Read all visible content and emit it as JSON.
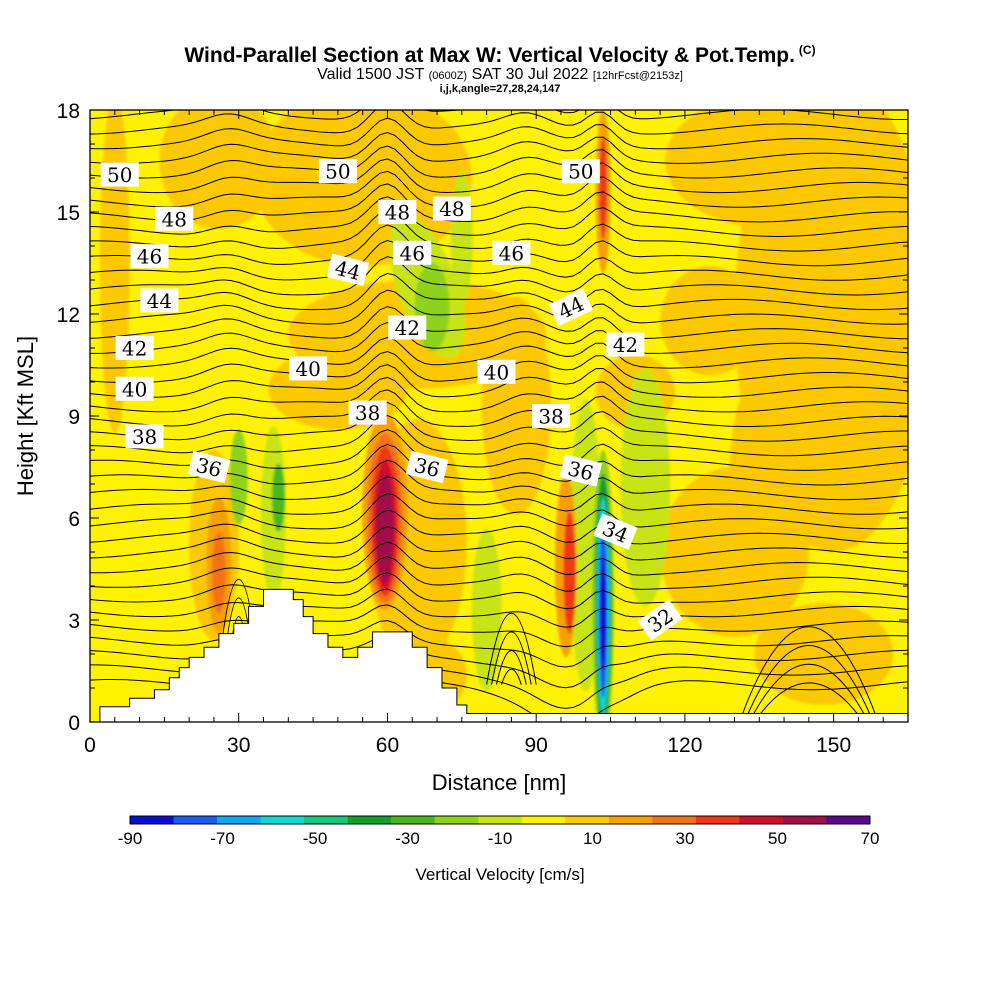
{
  "header": {
    "title": "Wind-Parallel Section at Max W: Vertical Velocity & Pot.Temp.",
    "copyright_mark": "(C)",
    "valid_prefix": "Valid 1500 JST",
    "valid_z": "(0600Z)",
    "valid_date": "SAT 30 Jul 2022",
    "forecast_note": "[12hrFcst@2153z]",
    "ijk_line": "i,j,k,angle=27,28,24,147"
  },
  "chart_data": {
    "type": "heatmap",
    "xlabel": "Distance [nm]",
    "ylabel": "Height [Kft MSL]",
    "xlim": [
      0,
      165
    ],
    "ylim": [
      0,
      18
    ],
    "x_ticks": [
      0,
      30,
      60,
      90,
      120,
      150
    ],
    "y_ticks": [
      0,
      3,
      6,
      9,
      12,
      15,
      18
    ],
    "colorbar": {
      "label": "Vertical Velocity [cm/s]",
      "tick_labels": [
        "-90",
        "-70",
        "-50",
        "-30",
        "-10",
        "10",
        "30",
        "50",
        "70"
      ],
      "bounds": [
        -90,
        -80,
        -70,
        -60,
        -50,
        -40,
        -30,
        -20,
        -10,
        0,
        10,
        20,
        30,
        40,
        50,
        60,
        70
      ],
      "colors": [
        "#0b0bd6",
        "#1a5cf0",
        "#10a8f0",
        "#10d8d0",
        "#18c87a",
        "#10a030",
        "#4cb820",
        "#8ed21a",
        "#c8e414",
        "#fff200",
        "#fcc800",
        "#f8a000",
        "#f47218",
        "#f03818",
        "#d0102a",
        "#a0104a",
        "#5a0a8c"
      ]
    },
    "terrain_profile": {
      "x": [
        0,
        2,
        2,
        8,
        8,
        13,
        13,
        16,
        16,
        18,
        18,
        20,
        20,
        23,
        23,
        26,
        26,
        29,
        29,
        32,
        32,
        35,
        35,
        41,
        41,
        43,
        43,
        45,
        45,
        48,
        48,
        51,
        51,
        54,
        54,
        57,
        57,
        59,
        59,
        65,
        65,
        68,
        68,
        71,
        71,
        74,
        74,
        76,
        76,
        165
      ],
      "z": [
        0,
        0,
        0.45,
        0.45,
        0.7,
        0.7,
        0.95,
        0.95,
        1.3,
        1.3,
        1.6,
        1.6,
        1.9,
        1.9,
        2.2,
        2.2,
        2.6,
        2.6,
        2.9,
        2.9,
        3.4,
        3.4,
        3.9,
        3.9,
        3.6,
        3.6,
        3.1,
        3.1,
        2.6,
        2.6,
        2.2,
        2.2,
        1.9,
        1.9,
        2.2,
        2.2,
        2.65,
        2.65,
        2.65,
        2.65,
        2.2,
        2.2,
        1.6,
        1.6,
        1.0,
        1.0,
        0.5,
        0.5,
        0.25,
        0.25
      ]
    },
    "w_features": [
      {
        "x": 60,
        "z": 5.9,
        "w": 70,
        "note": "main updraft core"
      },
      {
        "x": 26,
        "z": 4.4,
        "w": 30
      },
      {
        "x": 97,
        "z": 4.5,
        "w": 40
      },
      {
        "x": 103.5,
        "z": 3.5,
        "w": -80,
        "note": "downdraft core"
      },
      {
        "x": 103.5,
        "z": 15.5,
        "w": 30
      },
      {
        "x": 72,
        "z": 13.0,
        "w": -15
      },
      {
        "x": 112,
        "z": 7.0,
        "w": -15
      }
    ],
    "theta_contours": [
      {
        "value": 50,
        "labels": [
          [
            6,
            16.1
          ],
          [
            50,
            16.2
          ],
          [
            99,
            16.2
          ]
        ]
      },
      {
        "value": 48,
        "labels": [
          [
            17,
            14.8
          ],
          [
            62,
            15.0
          ],
          [
            73,
            15.1
          ]
        ]
      },
      {
        "value": 46,
        "labels": [
          [
            12,
            13.7
          ],
          [
            65,
            13.8
          ],
          [
            85,
            13.8
          ]
        ]
      },
      {
        "value": 44,
        "labels": [
          [
            14,
            12.4
          ],
          [
            52,
            13.3
          ],
          [
            97,
            12.2
          ]
        ]
      },
      {
        "value": 42,
        "labels": [
          [
            9,
            11.0
          ],
          [
            64,
            11.6
          ],
          [
            108,
            11.1
          ]
        ]
      },
      {
        "value": 40,
        "labels": [
          [
            9,
            9.8
          ],
          [
            44,
            10.4
          ],
          [
            82,
            10.3
          ]
        ]
      },
      {
        "value": 38,
        "labels": [
          [
            11,
            8.4
          ],
          [
            56,
            9.1
          ],
          [
            93,
            9.0
          ]
        ]
      },
      {
        "value": 36,
        "labels": [
          [
            24,
            7.5
          ],
          [
            68,
            7.5
          ],
          [
            99,
            7.4
          ]
        ]
      },
      {
        "value": 34,
        "labels": [
          [
            106,
            5.6
          ]
        ]
      },
      {
        "value": 32,
        "labels": [
          [
            115,
            3.0
          ]
        ]
      }
    ],
    "theta_levels_printed": [
      "50",
      "50",
      "50",
      "48",
      "48",
      "48",
      "46",
      "46",
      "46",
      "44",
      "44",
      "44",
      "42",
      "42",
      "42",
      "40",
      "40",
      "40",
      "38",
      "38",
      "38",
      "36",
      "36",
      "36",
      "34",
      "32"
    ]
  }
}
